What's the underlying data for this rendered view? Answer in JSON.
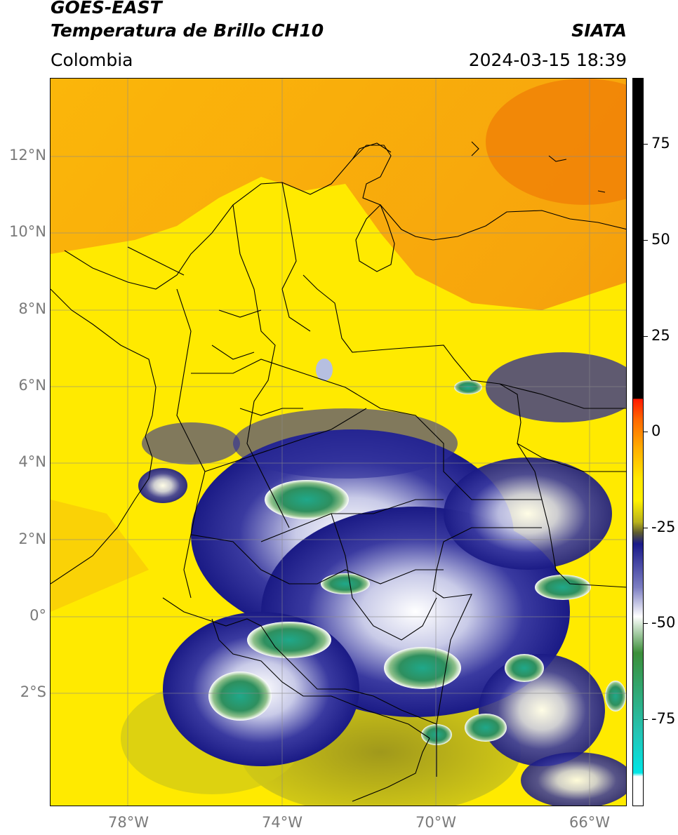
{
  "header": {
    "satellite": "GOES-EAST",
    "product": "Temperatura de Brillo CH10",
    "region": "Colombia",
    "source": "SIATA",
    "datetime": "2024-03-15 18:39"
  },
  "map": {
    "projection": "lat-lon",
    "extent": {
      "lon": [
        -80,
        -65
      ],
      "lat": [
        -5,
        14
      ]
    },
    "latitude_labels": [
      "12°N",
      "10°N",
      "8°N",
      "6°N",
      "4°N",
      "2°N",
      "0°",
      "2°S"
    ],
    "longitude_labels": [
      "78°W",
      "74°W",
      "70°W",
      "66°W"
    ],
    "gridlines": true,
    "colors": {
      "warm_background": "#f4a60a",
      "land_yellow": "#ffee00",
      "cold_cloud_blue": "#1c1c8e",
      "very_cold_green": "#2a9a66"
    }
  },
  "colorbar": {
    "ticks": [
      "75",
      "50",
      "25",
      "0",
      "-25",
      "-50",
      "-75"
    ],
    "range": [
      -95,
      90
    ],
    "units_shown": ""
  }
}
